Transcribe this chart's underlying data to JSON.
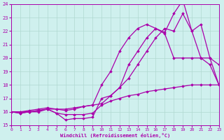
{
  "xlabel": "Windchill (Refroidissement éolien,°C)",
  "xlim": [
    0,
    23
  ],
  "ylim": [
    15,
    24
  ],
  "xticks": [
    0,
    1,
    2,
    3,
    4,
    5,
    6,
    7,
    8,
    9,
    10,
    11,
    12,
    13,
    14,
    15,
    16,
    17,
    18,
    19,
    20,
    21,
    22,
    23
  ],
  "yticks": [
    15,
    16,
    17,
    18,
    19,
    20,
    21,
    22,
    23,
    24
  ],
  "background_color": "#cff0ee",
  "grid_color": "#b0d8d0",
  "line_color": "#aa00aa",
  "series": [
    {
      "x": [
        0,
        1,
        2,
        3,
        4,
        5,
        6,
        7,
        8,
        9,
        10,
        11,
        12,
        13,
        14,
        15,
        16,
        17,
        18,
        19,
        20,
        21,
        22,
        23
      ],
      "y": [
        16.0,
        15.9,
        16.0,
        16.0,
        16.2,
        15.9,
        15.8,
        15.8,
        15.8,
        15.9,
        16.5,
        16.8,
        17.0,
        17.2,
        17.3,
        17.5,
        17.6,
        17.7,
        17.8,
        17.9,
        18.0,
        18.0,
        18.0,
        18.0
      ]
    },
    {
      "x": [
        0,
        1,
        2,
        3,
        4,
        5,
        6,
        7,
        8,
        9,
        10,
        11,
        12,
        13,
        14,
        15,
        16,
        17,
        18,
        19,
        20,
        21,
        22,
        23
      ],
      "y": [
        16.0,
        15.9,
        16.0,
        16.1,
        16.2,
        15.9,
        15.4,
        15.5,
        15.5,
        15.6,
        17.0,
        17.2,
        17.8,
        19.5,
        20.5,
        21.5,
        22.2,
        21.8,
        20.0,
        20.0,
        20.0,
        20.0,
        19.5,
        18.0
      ]
    },
    {
      "x": [
        0,
        1,
        2,
        3,
        4,
        5,
        6,
        7,
        8,
        9,
        10,
        11,
        12,
        13,
        14,
        15,
        16,
        17,
        18,
        19,
        20,
        21,
        22,
        23
      ],
      "y": [
        16.0,
        16.0,
        16.1,
        16.2,
        16.3,
        16.2,
        16.1,
        16.2,
        16.4,
        16.5,
        18.0,
        19.0,
        20.5,
        21.5,
        22.2,
        22.5,
        22.2,
        21.9,
        23.3,
        24.3,
        22.0,
        22.5,
        20.0,
        19.5
      ]
    },
    {
      "x": [
        0,
        1,
        2,
        3,
        4,
        5,
        6,
        7,
        8,
        9,
        10,
        11,
        12,
        13,
        14,
        15,
        16,
        17,
        18,
        19,
        20,
        21,
        22,
        23
      ],
      "y": [
        16.0,
        16.0,
        16.0,
        16.1,
        16.2,
        16.2,
        16.2,
        16.3,
        16.4,
        16.5,
        16.6,
        17.2,
        17.8,
        18.5,
        19.5,
        20.5,
        21.5,
        22.2,
        22.0,
        23.3,
        22.0,
        20.0,
        20.0,
        18.0
      ]
    }
  ]
}
